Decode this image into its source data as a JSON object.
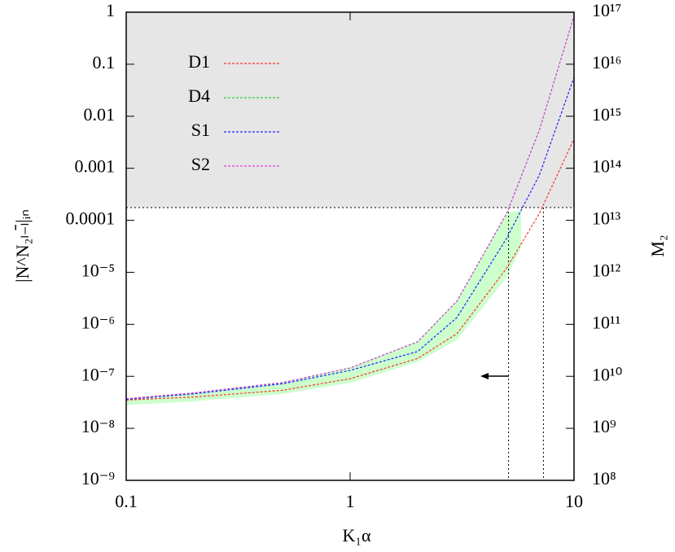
{
  "chart_data": {
    "type": "line",
    "xlabel": "K₁α",
    "ylabel": "|N^N₂ₗ₋ₗ̄|ᵢₙ",
    "y2label": "M₂",
    "log_x": true,
    "log_y": true,
    "xlim": [
      0.1,
      10
    ],
    "xticks": [
      0.1,
      1,
      10
    ],
    "ylim": [
      1e-09,
      1
    ],
    "yticks": [
      {
        "value": 1e-09,
        "label": "10⁻⁹"
      },
      {
        "value": 1e-08,
        "label": "10⁻⁸"
      },
      {
        "value": 1e-07,
        "label": "10⁻⁷"
      },
      {
        "value": 1e-06,
        "label": "10⁻⁶"
      },
      {
        "value": 1e-05,
        "label": "10⁻⁵"
      },
      0.0001,
      0.001,
      0.01,
      0.1,
      1
    ],
    "y2lim": [
      100000000.0,
      1e+17
    ],
    "y2ticks": [
      {
        "value": 100000000.0,
        "label": "10⁸"
      },
      {
        "value": 1000000000.0,
        "label": "10⁹"
      },
      {
        "value": 10000000000.0,
        "label": "10¹⁰"
      },
      {
        "value": 100000000000.0,
        "label": "10¹¹"
      },
      {
        "value": 1000000000000.0,
        "label": "10¹²"
      },
      {
        "value": 10000000000000.0,
        "label": "10¹³"
      },
      {
        "value": 100000000000000.0,
        "label": "10¹⁴"
      },
      {
        "value": 1000000000000000.0,
        "label": "10¹⁵"
      },
      {
        "value": 1e+16,
        "label": "10¹⁶"
      },
      {
        "value": 1e+17,
        "label": "10¹⁷"
      }
    ],
    "threshold": 0.000175,
    "threshold_fill": "#e6e6e6",
    "vlines": [
      5.1,
      7.3
    ],
    "band": {
      "color": "#ccffcc",
      "x": [
        0.1,
        0.2,
        0.5,
        1,
        2,
        3,
        5,
        5.8
      ],
      "lower": [
        2.8e-08,
        3.3e-08,
        4.6e-08,
        7.5e-08,
        1.9e-07,
        5e-07,
        8e-06,
        3e-05
      ],
      "upper": [
        3.7e-08,
        4.8e-08,
        7.6e-08,
        1.45e-07,
        4.6e-07,
        2.8e-06,
        0.000135,
        0.00016
      ]
    },
    "x": [
      0.1,
      0.2,
      0.5,
      1,
      2,
      3,
      5,
      7,
      10
    ],
    "series": [
      {
        "name": "D1",
        "color": "#ff3030",
        "values": [
          3.5e-08,
          4e-08,
          5.4e-08,
          9e-08,
          2.2e-07,
          6.6e-07,
          1.2e-05,
          0.000135,
          0.0037
        ]
      },
      {
        "name": "D4",
        "color": "#30d030",
        "values": [
          3.7e-08,
          4.8e-08,
          7.6e-08,
          1.45e-07,
          4.6e-07,
          2.8e-06,
          0.000135,
          0.0054,
          0.85
        ]
      },
      {
        "name": "S1",
        "color": "#2020ff",
        "values": [
          3.6e-08,
          4.6e-08,
          7.2e-08,
          1.3e-07,
          3e-07,
          1.35e-06,
          4.5e-05,
          0.00074,
          0.056
        ]
      },
      {
        "name": "S2",
        "color": "#e040e0",
        "values": [
          3.7e-08,
          4.8e-08,
          7.6e-08,
          1.45e-07,
          4.6e-07,
          2.8e-06,
          0.000135,
          0.0054,
          0.85
        ]
      }
    ]
  }
}
